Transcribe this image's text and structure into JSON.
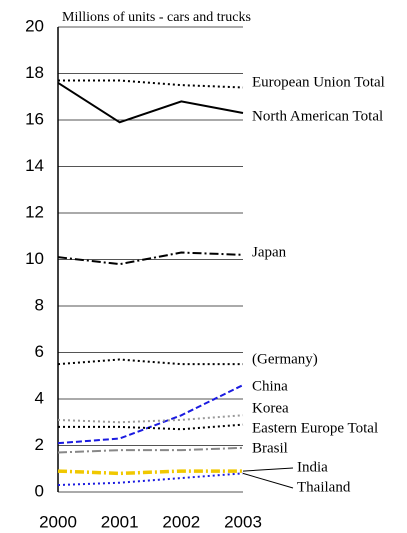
{
  "chart_data": {
    "type": "line",
    "y_label": "Millions of units - cars and trucks",
    "x": [
      "2000",
      "2001",
      "2002",
      "2003"
    ],
    "ylim": [
      0,
      20
    ],
    "yticks": [
      0,
      2,
      4,
      6,
      8,
      10,
      12,
      14,
      16,
      18,
      20
    ],
    "grid": true,
    "series": [
      {
        "name": "European Union Total",
        "color": "#000000",
        "style": "dotted",
        "values": [
          17.7,
          17.7,
          17.5,
          17.4
        ]
      },
      {
        "name": "North American Total",
        "color": "#000000",
        "style": "solid",
        "values": [
          17.6,
          15.9,
          16.8,
          16.3
        ]
      },
      {
        "name": "Japan",
        "color": "#000000",
        "style": "dashdot",
        "values": [
          10.1,
          9.8,
          10.3,
          10.2
        ]
      },
      {
        "name": "(Germany)",
        "color": "#000000",
        "style": "dotted",
        "values": [
          5.5,
          5.7,
          5.5,
          5.5
        ]
      },
      {
        "name": "China",
        "color": "#1a1ae0",
        "style": "dashed",
        "values": [
          2.1,
          2.3,
          3.3,
          4.6
        ]
      },
      {
        "name": "Korea",
        "color": "#999999",
        "style": "dotted",
        "values": [
          3.1,
          3.0,
          3.1,
          3.3
        ]
      },
      {
        "name": "Eastern Europe Total",
        "color": "#000000",
        "style": "dotted",
        "values": [
          2.8,
          2.8,
          2.7,
          2.9
        ]
      },
      {
        "name": "Brasil",
        "color": "#888888",
        "style": "dashdot",
        "values": [
          1.7,
          1.8,
          1.8,
          1.9
        ]
      },
      {
        "name": "India",
        "color": "#f0c800",
        "style": "dashdot",
        "values": [
          0.9,
          0.8,
          0.9,
          0.9
        ]
      },
      {
        "name": "Thailand",
        "color": "#1a1ae0",
        "style": "dotted",
        "values": [
          0.3,
          0.4,
          0.6,
          0.8
        ]
      }
    ]
  }
}
